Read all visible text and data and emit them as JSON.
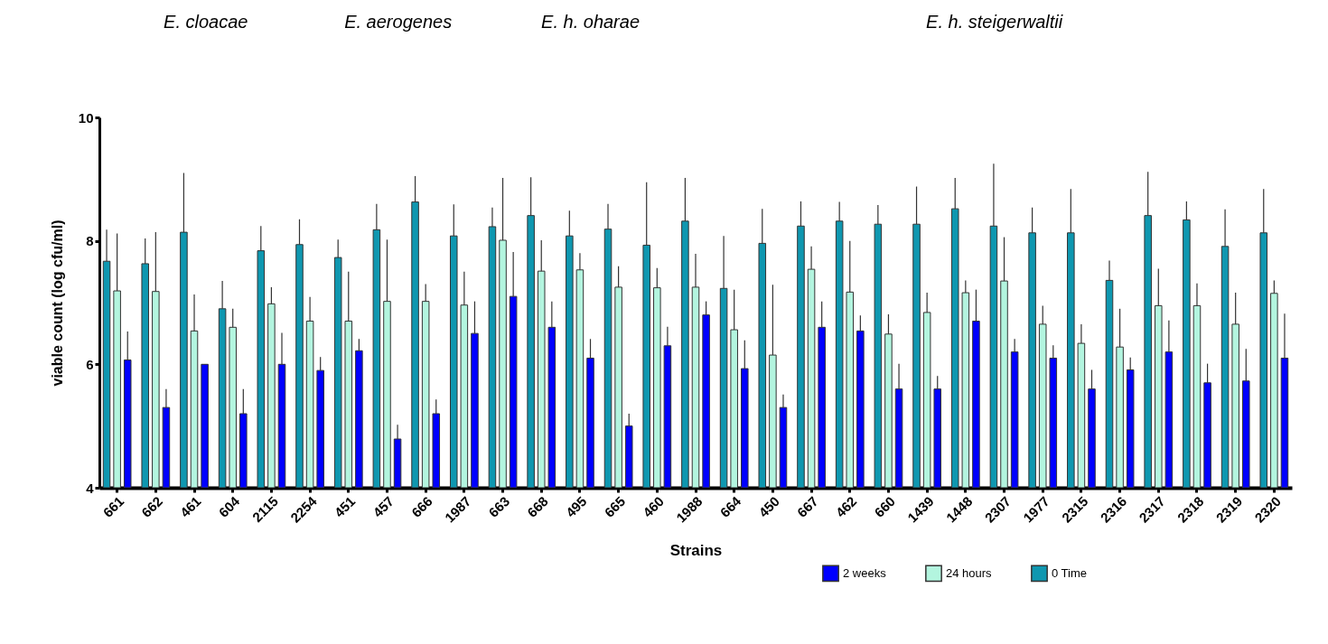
{
  "chart_data": {
    "type": "bar",
    "categories": [
      "661",
      "662",
      "461",
      "604",
      "2115",
      "2254",
      "451",
      "457",
      "666",
      "1987",
      "663",
      "668",
      "495",
      "665",
      "460",
      "1988",
      "664",
      "450",
      "667",
      "462",
      "660",
      "1439",
      "1448",
      "2307",
      "1977",
      "2315",
      "2316",
      "2317",
      "2318",
      "2319",
      "2320"
    ],
    "series": [
      {
        "name": "0 Time",
        "color": "#0f97b0",
        "values": [
          7.67,
          7.63,
          8.14,
          6.9,
          7.84,
          7.94,
          7.73,
          8.18,
          8.63,
          8.08,
          8.23,
          8.41,
          8.08,
          8.19,
          7.93,
          8.32,
          7.23,
          7.96,
          8.24,
          8.32,
          8.27,
          8.27,
          8.52,
          8.24,
          8.13,
          8.13,
          7.36,
          8.41,
          8.34,
          7.91,
          8.13
        ],
        "errors": [
          [
            7.67,
            8.18
          ],
          [
            7.63,
            8.04
          ],
          [
            8.14,
            9.1
          ],
          [
            6.9,
            7.35
          ],
          [
            7.84,
            8.24
          ],
          [
            7.94,
            8.35
          ],
          [
            7.73,
            8.02
          ],
          [
            8.18,
            8.6
          ],
          [
            8.63,
            9.05
          ],
          [
            8.08,
            8.59
          ],
          [
            8.23,
            8.54
          ],
          [
            8.41,
            9.03
          ],
          [
            8.08,
            8.49
          ],
          [
            8.19,
            8.6
          ],
          [
            7.93,
            8.95
          ],
          [
            8.32,
            9.02
          ],
          [
            7.23,
            8.08
          ],
          [
            7.96,
            8.52
          ],
          [
            8.24,
            8.64
          ],
          [
            8.32,
            8.63
          ],
          [
            8.27,
            8.58
          ],
          [
            8.27,
            8.88
          ],
          [
            8.52,
            9.02
          ],
          [
            8.24,
            9.25
          ],
          [
            8.13,
            8.54
          ],
          [
            8.13,
            8.84
          ],
          [
            7.36,
            7.68
          ],
          [
            8.41,
            9.12
          ],
          [
            8.34,
            8.64
          ],
          [
            7.91,
            8.51
          ],
          [
            8.13,
            8.84
          ]
        ]
      },
      {
        "name": "24 hours",
        "color": "#b3f5df",
        "values": [
          7.19,
          7.18,
          6.54,
          6.6,
          6.98,
          6.7,
          6.7,
          7.02,
          7.02,
          6.96,
          8.01,
          7.51,
          7.53,
          7.25,
          7.24,
          7.25,
          6.56,
          6.15,
          7.54,
          7.17,
          6.49,
          6.84,
          7.16,
          7.35,
          6.65,
          6.34,
          6.28,
          6.95,
          6.95,
          6.65,
          7.15
        ],
        "errors": [
          [
            7.19,
            8.12
          ],
          [
            7.18,
            8.14
          ],
          [
            6.54,
            7.13
          ],
          [
            6.6,
            6.9
          ],
          [
            6.98,
            7.25
          ],
          [
            6.7,
            7.09
          ],
          [
            6.7,
            7.5
          ],
          [
            7.02,
            8.02
          ],
          [
            7.02,
            7.3
          ],
          [
            6.96,
            7.5
          ],
          [
            8.01,
            9.02
          ],
          [
            7.51,
            8.01
          ],
          [
            7.53,
            7.8
          ],
          [
            7.25,
            7.59
          ],
          [
            7.24,
            7.56
          ],
          [
            7.25,
            7.79
          ],
          [
            6.56,
            7.21
          ],
          [
            6.15,
            7.29
          ],
          [
            7.54,
            7.91
          ],
          [
            7.17,
            8.0
          ],
          [
            6.49,
            6.81
          ],
          [
            6.84,
            7.16
          ],
          [
            7.16,
            7.36
          ],
          [
            7.35,
            8.06
          ],
          [
            6.65,
            6.95
          ],
          [
            6.34,
            6.65
          ],
          [
            6.28,
            6.9
          ],
          [
            6.95,
            7.55
          ],
          [
            6.95,
            7.31
          ],
          [
            6.65,
            7.16
          ],
          [
            7.15,
            7.36
          ]
        ]
      },
      {
        "name": "2 weeks",
        "color": "#0000ff",
        "values": [
          6.07,
          5.3,
          6.0,
          5.2,
          6.0,
          5.9,
          6.22,
          4.79,
          5.2,
          6.5,
          7.1,
          6.6,
          6.1,
          5.0,
          6.3,
          6.8,
          5.93,
          5.3,
          6.6,
          6.54,
          5.6,
          5.6,
          6.7,
          6.2,
          6.1,
          5.6,
          5.91,
          6.2,
          5.7,
          5.73,
          6.1
        ],
        "errors": [
          [
            6.07,
            6.53
          ],
          [
            5.3,
            5.6
          ],
          null,
          [
            5.2,
            5.6
          ],
          [
            6.0,
            6.51
          ],
          [
            5.9,
            6.12
          ],
          [
            6.22,
            6.41
          ],
          [
            4.79,
            5.02
          ],
          [
            5.2,
            5.43
          ],
          [
            6.5,
            7.02
          ],
          [
            7.1,
            7.82
          ],
          [
            6.6,
            7.02
          ],
          [
            6.1,
            6.41
          ],
          [
            5.0,
            5.2
          ],
          [
            6.3,
            6.61
          ],
          [
            6.8,
            7.02
          ],
          [
            5.93,
            6.39
          ],
          [
            5.3,
            5.51
          ],
          [
            6.6,
            7.02
          ],
          [
            6.54,
            6.79
          ],
          [
            5.6,
            6.01
          ],
          [
            5.6,
            5.81
          ],
          [
            6.7,
            7.21
          ],
          [
            6.2,
            6.41
          ],
          [
            6.1,
            6.31
          ],
          [
            5.6,
            5.91
          ],
          [
            5.91,
            6.11
          ],
          [
            6.2,
            6.71
          ],
          [
            5.7,
            6.01
          ],
          [
            5.73,
            6.25
          ],
          [
            6.1,
            6.82
          ]
        ]
      }
    ],
    "ylim": [
      4,
      10
    ],
    "yticks": [
      4,
      6,
      8,
      10
    ],
    "xlabel": "Strains",
    "ylabel": "viable count (log cfu/ml)",
    "annotations": [
      "E. cloacae",
      "E. aerogenes",
      "E. h. oharae",
      "E. h.  steigerwaltii"
    ],
    "legend": "bottom right",
    "grid": false
  }
}
